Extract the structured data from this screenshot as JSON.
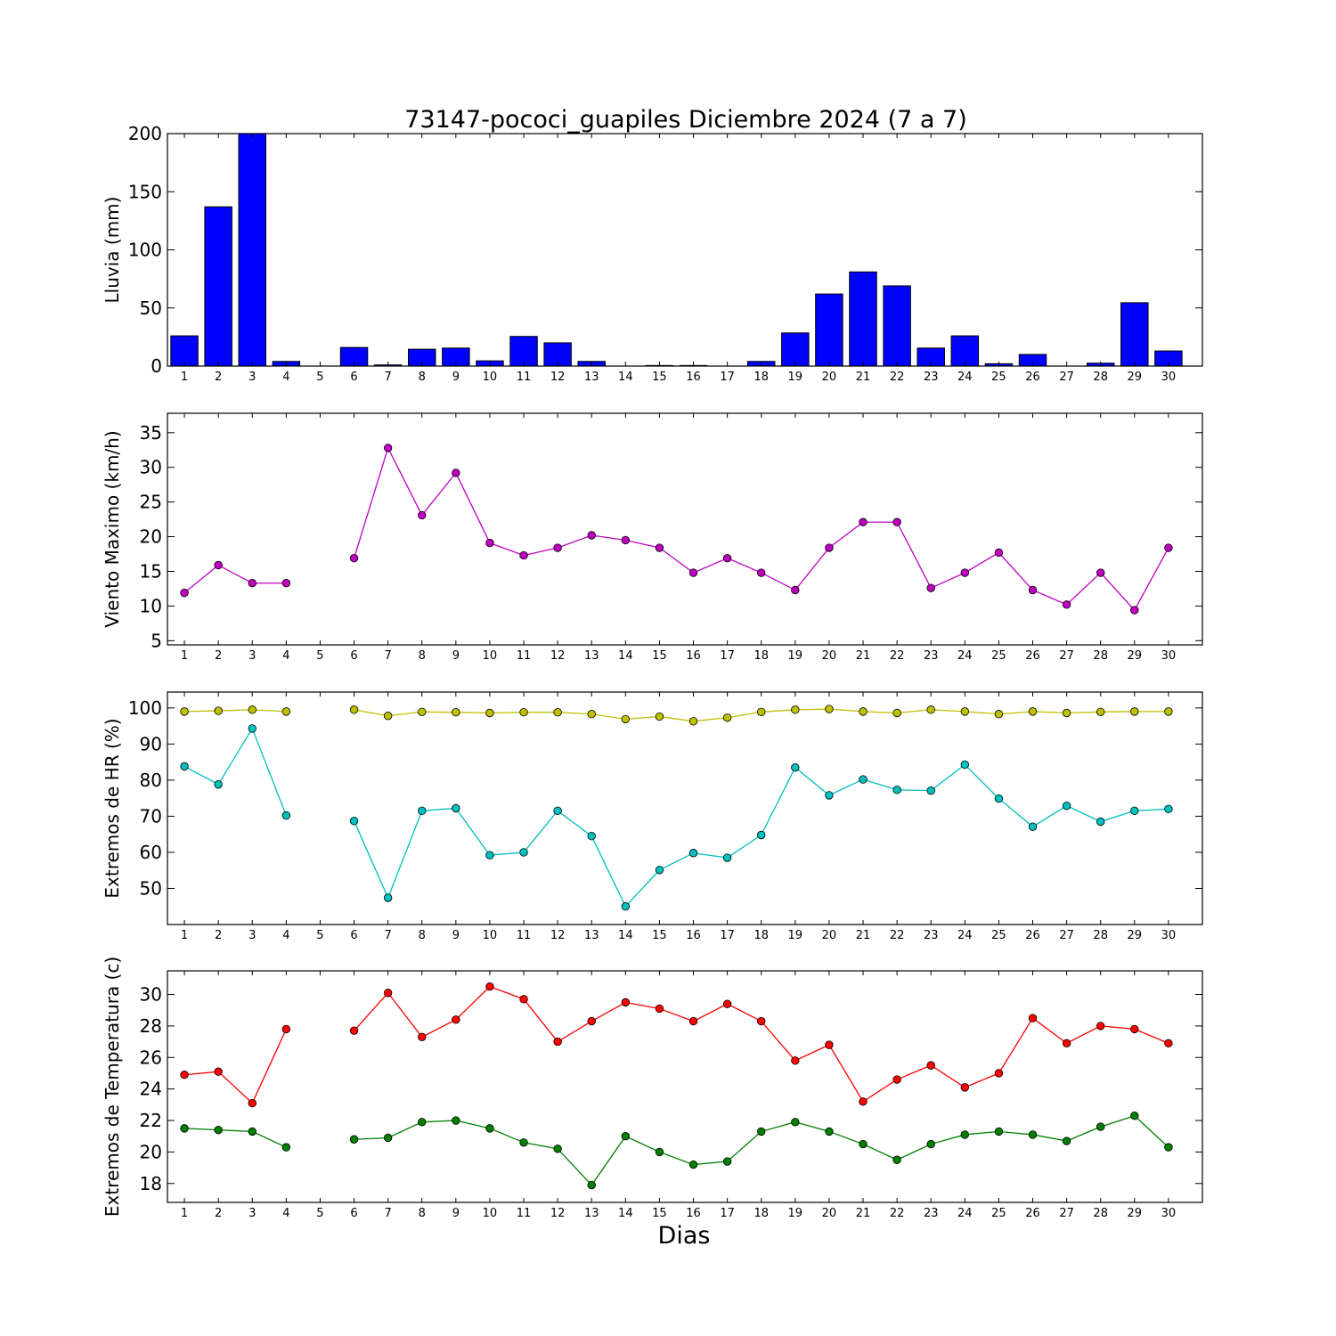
{
  "chart_data": [
    {
      "type": "bar",
      "title": "73147-pococi_guapiles Diciembre 2024  (7 a 7)",
      "xlabel": "",
      "ylabel": "Lluvia (mm)",
      "categories": [
        "1",
        "2",
        "3",
        "4",
        "5",
        "6",
        "7",
        "8",
        "9",
        "10",
        "11",
        "12",
        "13",
        "14",
        "15",
        "16",
        "17",
        "18",
        "19",
        "20",
        "21",
        "22",
        "23",
        "24",
        "25",
        "26",
        "27",
        "28",
        "29",
        "30"
      ],
      "values": [
        26,
        137,
        200,
        4,
        null,
        16,
        1,
        14.5,
        15.5,
        4.5,
        25.5,
        20,
        4,
        0,
        0.5,
        0.5,
        0,
        4,
        28.5,
        62,
        81,
        69,
        15.5,
        26,
        2,
        10,
        0,
        2.5,
        54.5,
        13
      ],
      "ylim": [
        0,
        200
      ],
      "yticks": [
        0,
        50,
        100,
        150,
        200
      ],
      "color": "#0000ff",
      "grid": false
    },
    {
      "type": "line",
      "ylabel": "Viento Maximo (km/h)",
      "x": [
        1,
        2,
        3,
        4,
        5,
        6,
        7,
        8,
        9,
        10,
        11,
        12,
        13,
        14,
        15,
        16,
        17,
        18,
        19,
        20,
        21,
        22,
        23,
        24,
        25,
        26,
        27,
        28,
        29,
        30
      ],
      "series": [
        {
          "color": "#bf00bf",
          "values": [
            11.9,
            15.9,
            13.3,
            13.3,
            null,
            16.9,
            32.8,
            23.1,
            29.2,
            19.1,
            17.3,
            18.4,
            20.2,
            19.5,
            18.4,
            14.8,
            16.9,
            14.8,
            12.3,
            18.4,
            22.1,
            22.1,
            12.6,
            14.8,
            17.7,
            12.3,
            10.2,
            14.8,
            9.4,
            18.4
          ]
        }
      ],
      "ylim": [
        4.4,
        37.8
      ],
      "yticks": [
        5,
        10,
        15,
        20,
        25,
        30,
        35
      ],
      "grid": false
    },
    {
      "type": "line",
      "ylabel": "Extremos de HR (%)",
      "x": [
        1,
        2,
        3,
        4,
        5,
        6,
        7,
        8,
        9,
        10,
        11,
        12,
        13,
        14,
        15,
        16,
        17,
        18,
        19,
        20,
        21,
        22,
        23,
        24,
        25,
        26,
        27,
        28,
        29,
        30
      ],
      "series": [
        {
          "color": "#bfbf00",
          "values": [
            99,
            99.2,
            99.5,
            99,
            null,
            99.5,
            97.8,
            98.9,
            98.8,
            98.6,
            98.8,
            98.8,
            98.3,
            96.9,
            97.6,
            96.3,
            97.3,
            98.9,
            99.5,
            99.7,
            99,
            98.6,
            99.5,
            99,
            98.3,
            99,
            98.6,
            98.9,
            99,
            99
          ]
        },
        {
          "color": "#00bfbf",
          "values": [
            83.8,
            78.8,
            94.3,
            70.2,
            null,
            68.7,
            47.4,
            71.5,
            72.2,
            59.2,
            60,
            71.5,
            64.5,
            45,
            55.1,
            59.8,
            58.5,
            64.8,
            83.5,
            75.8,
            80.2,
            77.3,
            77.1,
            84.3,
            74.9,
            67.1,
            72.9,
            68.5,
            71.5,
            72
          ]
        }
      ],
      "ylim": [
        40,
        104.4
      ],
      "yticks": [
        50,
        60,
        70,
        80,
        90,
        100
      ],
      "grid": false
    },
    {
      "type": "line",
      "ylabel": "Extremos de Temperatura (c)",
      "xlabel": "Dias",
      "x": [
        1,
        2,
        3,
        4,
        5,
        6,
        7,
        8,
        9,
        10,
        11,
        12,
        13,
        14,
        15,
        16,
        17,
        18,
        19,
        20,
        21,
        22,
        23,
        24,
        25,
        26,
        27,
        28,
        29,
        30
      ],
      "series": [
        {
          "color": "#ff0000",
          "values": [
            24.9,
            25.1,
            23.1,
            27.8,
            null,
            27.7,
            30.1,
            27.3,
            28.4,
            30.5,
            29.7,
            27,
            28.3,
            29.5,
            29.1,
            28.3,
            29.4,
            28.3,
            25.8,
            26.8,
            23.2,
            24.6,
            25.5,
            24.1,
            25,
            28.5,
            26.9,
            28,
            27.8,
            26.9
          ]
        },
        {
          "color": "#007f00",
          "values": [
            21.5,
            21.4,
            21.3,
            20.3,
            null,
            20.8,
            20.9,
            21.9,
            22,
            21.5,
            20.6,
            20.2,
            17.9,
            21,
            20,
            19.2,
            19.4,
            21.3,
            21.9,
            21.3,
            20.5,
            19.5,
            20.5,
            21.1,
            21.3,
            21.1,
            20.7,
            21.6,
            22.3,
            20.3
          ]
        }
      ],
      "ylim": [
        16.8,
        31.5
      ],
      "yticks": [
        18,
        20,
        22,
        24,
        26,
        28,
        30
      ],
      "grid": false
    }
  ]
}
